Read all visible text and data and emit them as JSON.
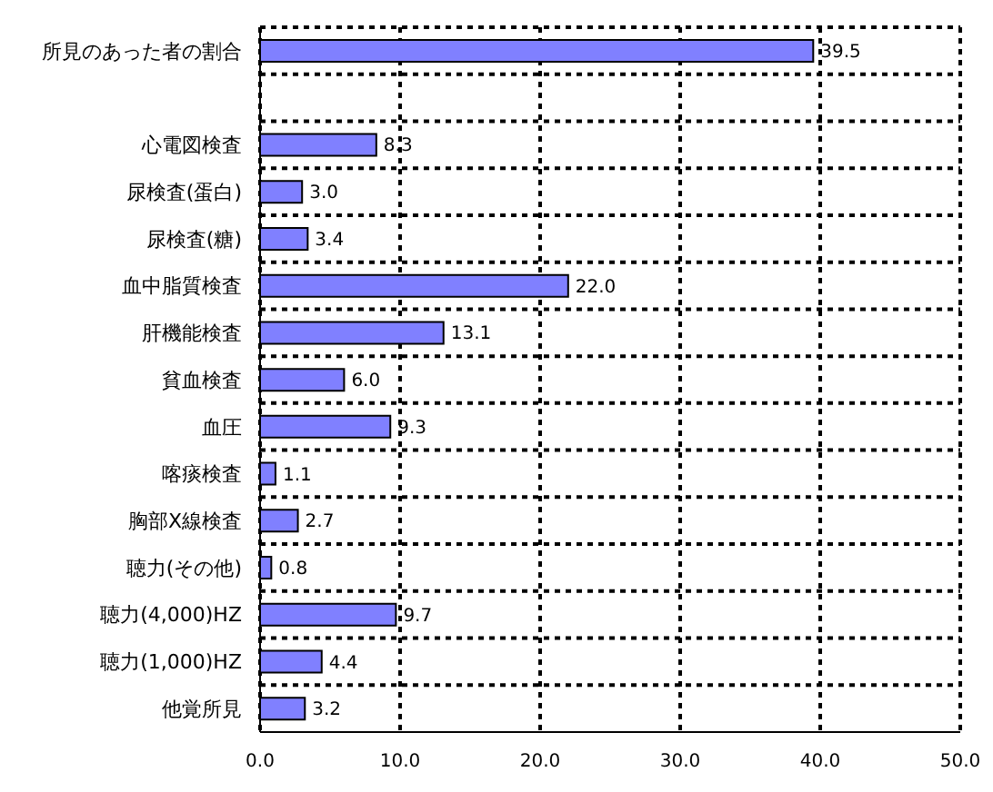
{
  "chart_data": {
    "type": "bar",
    "orientation": "horizontal",
    "categories": [
      "所見のあった者の割合",
      null,
      "心電図検査",
      "尿検査(蛋白)",
      "尿検査(糖)",
      "血中脂質検査",
      "肝機能検査",
      "貧血検査",
      "血圧",
      "喀痰検査",
      "胸部X線検査",
      "聴力(その他)",
      "聴力(4,000)HZ",
      "聴力(1,000)HZ",
      "他覚所見"
    ],
    "values": [
      39.5,
      null,
      8.3,
      3.0,
      3.4,
      22.0,
      13.1,
      6.0,
      9.3,
      1.1,
      2.7,
      0.8,
      9.7,
      4.4,
      3.2
    ],
    "value_labels": [
      "39.5",
      null,
      "8.3",
      "3.0",
      "3.4",
      "22.0",
      "13.1",
      "6.0",
      "9.3",
      "1.1",
      "2.7",
      "0.8",
      "9.7",
      "4.4",
      "3.2"
    ],
    "color": "#8080ff",
    "xlim": [
      0,
      50
    ],
    "xticks": [
      {
        "value": 0,
        "label": "0.0"
      },
      {
        "value": 10,
        "label": "10.0"
      },
      {
        "value": 20,
        "label": "20.0"
      },
      {
        "value": 30,
        "label": "30.0"
      },
      {
        "value": 40,
        "label": "40.0"
      },
      {
        "value": 50,
        "label": "50.0"
      }
    ],
    "grid": true
  }
}
